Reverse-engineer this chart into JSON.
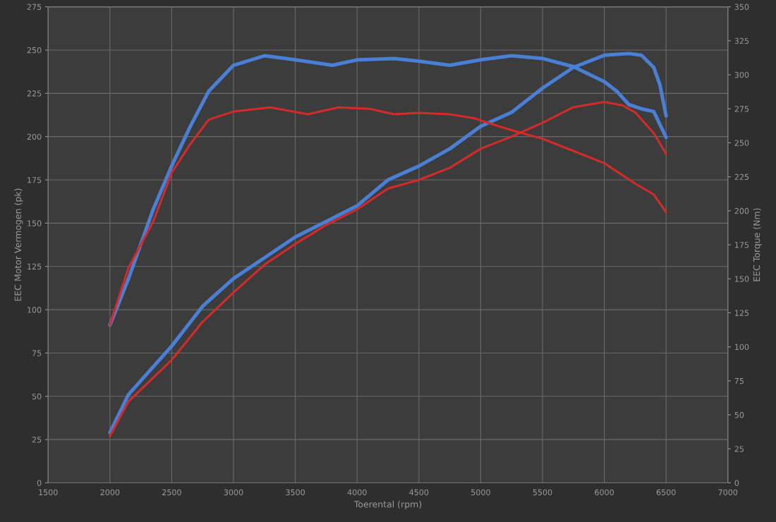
{
  "chart_data": {
    "type": "line",
    "xlabel": "Toerental (rpm)",
    "ylabel": "EEC Motor Vermogen (pk)",
    "y2label": "EEC Torque (Nm)",
    "xlim": [
      1500,
      7000
    ],
    "xticks": [
      1500,
      2000,
      2500,
      3000,
      3500,
      4000,
      4500,
      5000,
      5500,
      6000,
      6500,
      7000
    ],
    "ylim": [
      0,
      275
    ],
    "yticks": [
      0,
      25,
      50,
      75,
      100,
      125,
      150,
      175,
      200,
      225,
      250,
      275
    ],
    "y2lim": [
      0,
      350
    ],
    "y2ticks": [
      0,
      25,
      50,
      75,
      100,
      125,
      150,
      175,
      200,
      225,
      250,
      275,
      300,
      325,
      350
    ],
    "grid": true,
    "marker": "none",
    "line_style": "solid",
    "series": [
      {
        "color": "#4a7fd6",
        "x": [
          2000,
          2150,
          2500,
          2750,
          3000,
          3250,
          3500,
          3750,
          4000,
          4250,
          4500,
          4750,
          5000,
          5250,
          5500,
          5750,
          6000,
          6200,
          6300,
          6400,
          6450,
          6500
        ],
        "values": [
          29,
          51,
          79,
          102,
          118,
          130,
          142,
          151,
          160,
          175,
          183,
          193,
          206,
          214,
          228,
          240,
          247,
          248,
          247,
          240,
          230,
          212
        ]
      },
      {
        "color": "#d42a2a",
        "x": [
          2000,
          2150,
          2500,
          2750,
          3000,
          3250,
          3500,
          3750,
          4000,
          4250,
          4500,
          4750,
          5000,
          5250,
          5500,
          5750,
          6000,
          6150,
          6250,
          6400,
          6500
        ],
        "values": [
          27,
          47,
          71,
          93,
          110,
          126,
          138,
          149,
          158,
          170,
          175,
          182,
          193,
          200,
          208,
          217,
          220,
          218,
          214,
          202,
          190
        ]
      },
      {
        "color": "#4a7fd6",
        "axis": "y2",
        "x": [
          2000,
          2150,
          2350,
          2500,
          2650,
          2800,
          3000,
          3250,
          3500,
          3800,
          4000,
          4300,
          4500,
          4750,
          5000,
          5250,
          5500,
          5750,
          6000,
          6100,
          6200,
          6300,
          6400,
          6500
        ],
        "values": [
          116,
          150,
          201,
          233,
          262,
          288,
          307,
          314,
          311,
          307,
          311,
          312,
          310,
          307,
          311,
          314,
          312,
          306,
          295,
          288,
          278,
          275,
          273,
          254
        ]
      },
      {
        "color": "#d42a2a",
        "axis": "y2",
        "x": [
          2000,
          2150,
          2350,
          2500,
          2650,
          2800,
          3000,
          3300,
          3600,
          3850,
          4100,
          4300,
          4500,
          4750,
          4950,
          5150,
          5300,
          5500,
          5750,
          6000,
          6250,
          6400,
          6500
        ],
        "values": [
          116,
          158,
          192,
          228,
          249,
          267,
          273,
          276,
          271,
          276,
          275,
          271,
          272,
          271,
          268,
          262,
          258,
          253,
          244,
          235,
          220,
          212,
          199
        ]
      }
    ]
  }
}
